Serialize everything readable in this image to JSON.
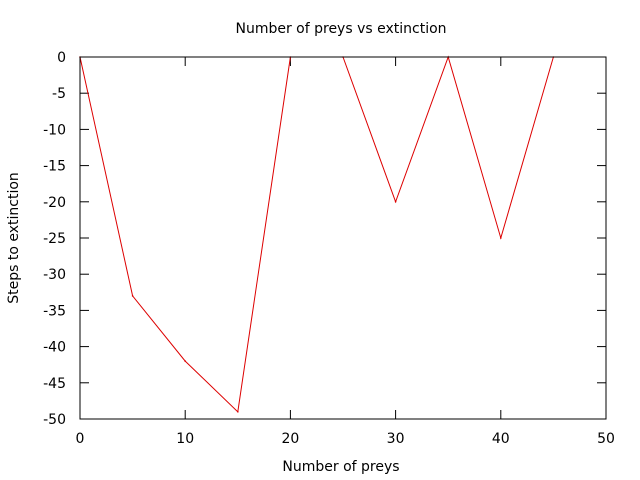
{
  "chart_data": {
    "type": "line",
    "title": "Number of preys vs extinction",
    "xlabel": "Number of preys",
    "ylabel": "Steps to extinction",
    "xlim": [
      0,
      50
    ],
    "ylim": [
      -50,
      0
    ],
    "xticks": [
      0,
      10,
      20,
      30,
      40,
      50
    ],
    "yticks": [
      0,
      -5,
      -10,
      -15,
      -20,
      -25,
      -30,
      -35,
      -40,
      -45,
      -50
    ],
    "grid": false,
    "legend": "none",
    "series": [
      {
        "color": "#dd0000",
        "x": [
          0,
          5,
          10,
          15,
          20,
          25,
          30,
          35,
          40,
          45
        ],
        "y": [
          0,
          -33,
          -42,
          -49,
          0,
          0,
          -20,
          0,
          -25,
          0
        ]
      }
    ]
  }
}
